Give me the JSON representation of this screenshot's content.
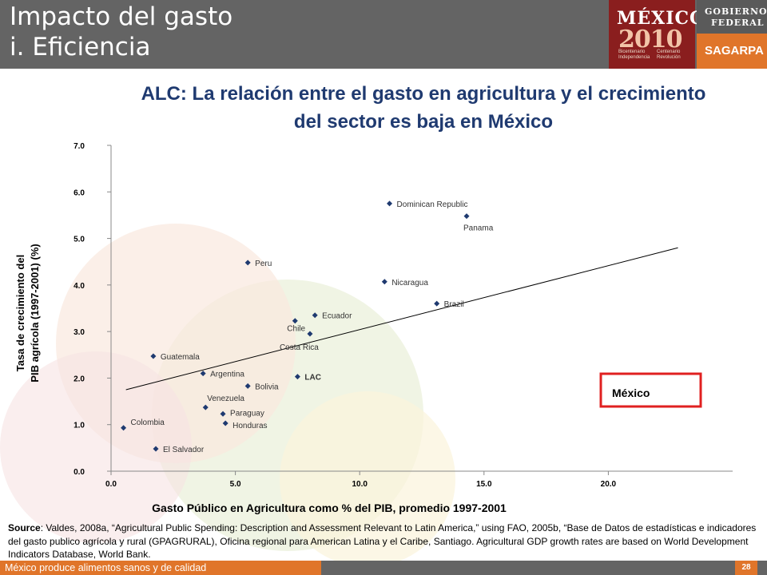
{
  "header": {
    "title_line1": "Impacto del gasto",
    "title_line2": "i. Eficiencia"
  },
  "logos": {
    "mexico_word": "MÉXICO",
    "mexico_year": "2010",
    "mexico_sub_left": "Bicentenario Independencia",
    "mexico_sub_right": "Centenario Revolución",
    "gob_line1": "GOBIERNO",
    "gob_line2": "FEDERAL",
    "sagarpa": "SAGARPA"
  },
  "chart_data": {
    "type": "scatter",
    "title": "ALC: La relación entre el gasto en agricultura y el crecimiento del sector es baja en México",
    "xlabel": "Gasto Público en Agricultura como % del PIB, promedio 1997-2001",
    "ylabel_line1": "Tasa de crecimiento del",
    "ylabel_line2": "PIB agrícola (1997-2001) (%)",
    "xlim": [
      0,
      25
    ],
    "ylim": [
      0,
      7
    ],
    "x_ticks": [
      "0.0",
      "5.0",
      "10.0",
      "15.0",
      "20.0"
    ],
    "y_ticks": [
      "0.0",
      "1.0",
      "2.0",
      "3.0",
      "4.0",
      "5.0",
      "6.0",
      "7.0"
    ],
    "points": [
      {
        "label": "Dominican Republic",
        "x": 11.2,
        "y": 5.75
      },
      {
        "label": "Panama",
        "x": 14.3,
        "y": 5.48
      },
      {
        "label": "Peru",
        "x": 5.5,
        "y": 4.48
      },
      {
        "label": "Nicaragua",
        "x": 11.0,
        "y": 4.07
      },
      {
        "label": "Brazil",
        "x": 13.1,
        "y": 3.6
      },
      {
        "label": "Ecuador",
        "x": 8.2,
        "y": 3.35
      },
      {
        "label": "Chile",
        "x": 7.4,
        "y": 3.23
      },
      {
        "label": "Costa Rica",
        "x": 8.0,
        "y": 2.95
      },
      {
        "label": "Guatemala",
        "x": 1.7,
        "y": 2.47
      },
      {
        "label": "Argentina",
        "x": 3.7,
        "y": 2.1
      },
      {
        "label": "LAC",
        "x": 7.5,
        "y": 2.03
      },
      {
        "label": "Bolivia",
        "x": 5.5,
        "y": 1.83
      },
      {
        "label": "Venezuela",
        "x": 3.8,
        "y": 1.37
      },
      {
        "label": "Paraguay",
        "x": 4.5,
        "y": 1.23
      },
      {
        "label": "Honduras",
        "x": 4.6,
        "y": 1.03
      },
      {
        "label": "Colombia",
        "x": 0.5,
        "y": 0.93
      },
      {
        "label": "El Salvador",
        "x": 1.8,
        "y": 0.48
      },
      {
        "label": "México",
        "x": 22.8,
        "y": 1.87
      }
    ],
    "trendline": {
      "x1": 0.6,
      "y1": 1.75,
      "x2": 22.8,
      "y2": 4.8
    },
    "highlight": "México",
    "marker_color": "#1f3a70"
  },
  "source": {
    "label": "Source",
    "text": ": Valdes, 2008a, “Agricultural Public Spending: Description and Assessment Relevant to Latin America,” using FAO, 2005b, “Base de Datos de estadísticas e indicadores del gasto publico agrícola y rural (GPAGRURAL), Oficina regional para American Latina y el Caribe, Santiago. Agricultural GDP growth rates are based on World Development Indicators Database, World Bank."
  },
  "footer": {
    "text": "México produce alimentos sanos y de calidad",
    "page": "28"
  }
}
